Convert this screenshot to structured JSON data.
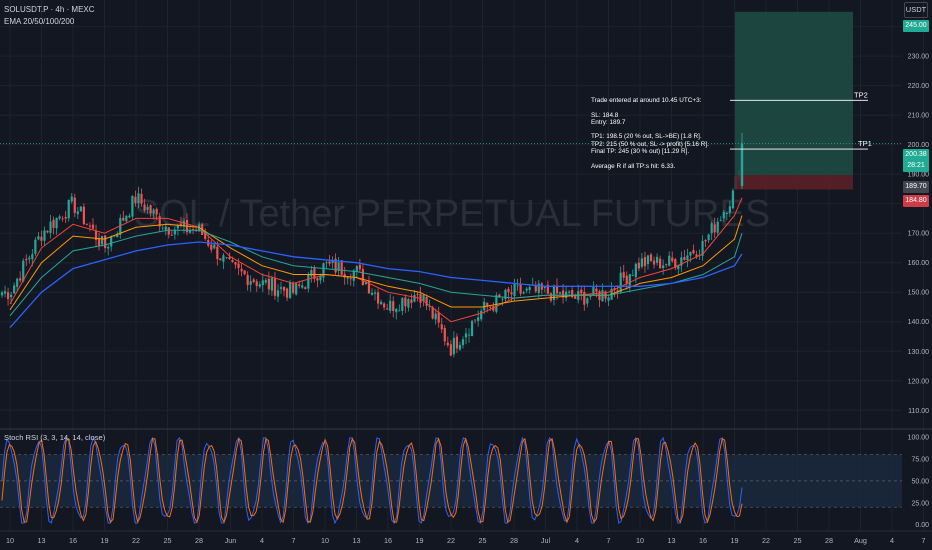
{
  "header": {
    "symbol_line": "SOLUSDT.P · 4h · MEXC",
    "indicator_line": "EMA 20/50/100/200",
    "currency": "USDT"
  },
  "watermark": "SOL / Tether PERPETUAL FUTURES",
  "note": {
    "text": "Trade entered at around 10.45 UTC+3:\n\nSL: 184.8\nEntry: 189.7\n\nTP1: 198.5 (20 % out, SL->BE) [1.8 R].\nTP2: 215 (50 % out, SL -> profit) [5.16 R].\nFinal TP: 245 (30 % out) [11.29 R].\n\nAverage R if all TP:s hit: 6.33."
  },
  "price_labels": {
    "tp_final": "245.00",
    "current": "200.38",
    "countdown": "28:21",
    "entry": "189.70",
    "sl": "184.80"
  },
  "level_labels": {
    "tp1": "TP1",
    "tp2": "TP2"
  },
  "rsi_label": "Stoch RSI (3, 3, 14, 14, close)",
  "colors": {
    "background": "#131722",
    "up": "#26a69a",
    "down": "#ef5350",
    "ema20": "#f44336",
    "ema50": "#ff9800",
    "ema100": "#26a69a",
    "ema200": "#2962ff",
    "target_zone": "#1e4a43",
    "stop_zone": "#5c1f28",
    "rsi_k": "#2962ff",
    "rsi_d": "#ff6d00",
    "rsi_band": "#1c2a40"
  },
  "chart_data": [
    {
      "type": "candlestick",
      "title": "SOLUSDT.P · 4h · MEXC",
      "y_ticks": [
        110,
        120,
        130,
        140,
        150,
        160,
        170,
        180,
        190,
        200,
        210,
        220,
        230,
        240
      ],
      "ylim": [
        104,
        249
      ],
      "x_ticks": [
        "10",
        "13",
        "16",
        "19",
        "22",
        "25",
        "28",
        "Jun",
        "4",
        "7",
        "10",
        "13",
        "16",
        "19",
        "22",
        "25",
        "28",
        "Jul",
        "4",
        "7",
        "10",
        "13",
        "16",
        "19",
        "22",
        "25",
        "28",
        "Aug",
        "4",
        "7"
      ],
      "close_path_anchors": [
        {
          "x": "10",
          "y": 150
        },
        {
          "x": "13",
          "y": 170
        },
        {
          "x": "16",
          "y": 180
        },
        {
          "x": "19",
          "y": 165
        },
        {
          "x": "22",
          "y": 182
        },
        {
          "x": "25",
          "y": 172
        },
        {
          "x": "28",
          "y": 171
        },
        {
          "x": "Jun",
          "y": 158
        },
        {
          "x": "4",
          "y": 153
        },
        {
          "x": "7",
          "y": 150
        },
        {
          "x": "10",
          "y": 159
        },
        {
          "x": "13",
          "y": 157
        },
        {
          "x": "16",
          "y": 145
        },
        {
          "x": "19",
          "y": 150
        },
        {
          "x": "22",
          "y": 131
        },
        {
          "x": "25",
          "y": 144
        },
        {
          "x": "28",
          "y": 150
        },
        {
          "x": "Jul",
          "y": 150
        },
        {
          "x": "4",
          "y": 148
        },
        {
          "x": "7",
          "y": 150
        },
        {
          "x": "10",
          "y": 160
        },
        {
          "x": "13",
          "y": 160
        },
        {
          "x": "16",
          "y": 166
        },
        {
          "x": "19",
          "y": 184
        },
        {
          "x": "22",
          "y": 200.38
        }
      ],
      "series": [
        {
          "name": "EMA 20",
          "values": [
            146,
            165,
            173,
            170,
            175,
            175,
            172,
            162,
            156,
            153,
            156,
            155,
            150,
            148,
            140,
            143,
            148,
            149,
            149,
            150,
            155,
            158,
            163,
            176,
            182
          ]
        },
        {
          "name": "EMA 50",
          "values": [
            144,
            160,
            169,
            168,
            172,
            173,
            172,
            165,
            159,
            156,
            156,
            155,
            152,
            150,
            145,
            145,
            147,
            148,
            149,
            149,
            153,
            155,
            159,
            168,
            176
          ]
        },
        {
          "name": "EMA 100",
          "values": [
            142,
            155,
            164,
            166,
            169,
            171,
            171,
            167,
            162,
            159,
            158,
            157,
            155,
            153,
            150,
            149,
            148,
            149,
            149,
            149,
            151,
            153,
            156,
            162,
            170
          ]
        },
        {
          "name": "EMA 200",
          "values": [
            138,
            150,
            158,
            161,
            164,
            166,
            167,
            166,
            164,
            162,
            161,
            160,
            158,
            157,
            155,
            154,
            153,
            152,
            152,
            152,
            152,
            153,
            155,
            159,
            163
          ]
        }
      ],
      "levels": [
        {
          "name": "TP1",
          "value": 198.5
        },
        {
          "name": "TP2",
          "value": 215
        },
        {
          "name": "Final TP",
          "value": 245
        },
        {
          "name": "Entry",
          "value": 189.7
        },
        {
          "name": "SL",
          "value": 184.8
        }
      ]
    },
    {
      "type": "line",
      "title": "Stoch RSI (3, 3, 14, 14, close)",
      "y_ticks": [
        0,
        25,
        50,
        75,
        100
      ],
      "ylim": [
        -6,
        108
      ],
      "band": [
        20,
        80
      ],
      "cycles": 26
    }
  ]
}
